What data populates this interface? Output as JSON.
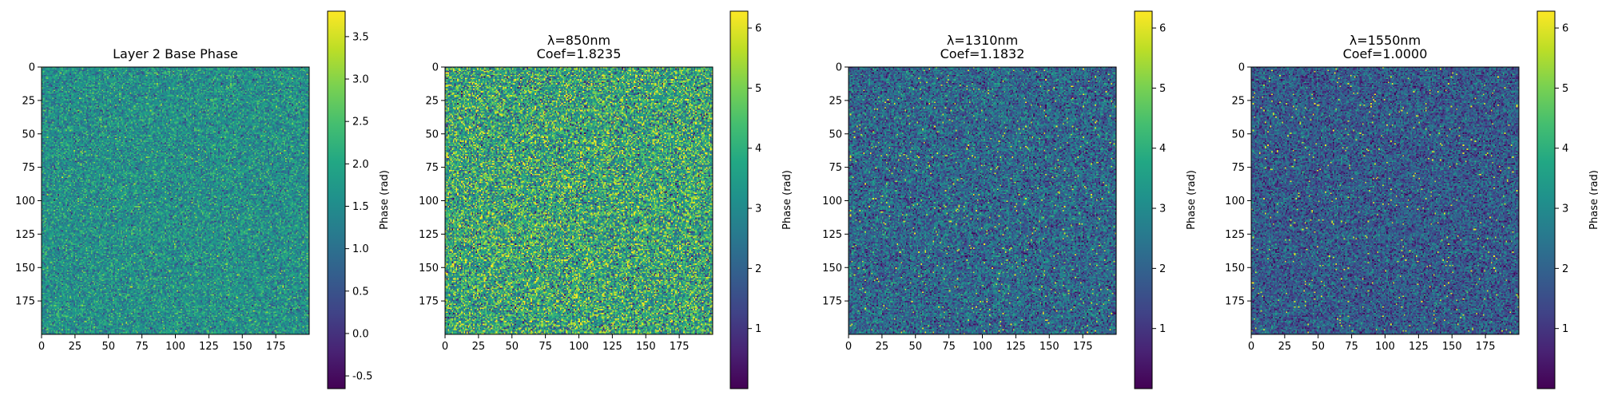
{
  "chart_data": [
    {
      "type": "heatmap",
      "title": "Layer 2 Base Phase",
      "title_line2": "",
      "x_ticks": [
        0,
        25,
        50,
        75,
        100,
        125,
        150,
        175
      ],
      "y_ticks": [
        0,
        25,
        50,
        75,
        100,
        125,
        150,
        175
      ],
      "xlim": [
        0,
        200
      ],
      "ylim": [
        0,
        200
      ],
      "grid_size": 200,
      "colormap": "viridis",
      "value_range": [
        -0.65,
        3.8
      ],
      "colorbar_label": "Phase (rad)",
      "colorbar_ticks": [
        "-0.5",
        "0.0",
        "0.5",
        "1.0",
        "1.5",
        "2.0",
        "2.5",
        "3.0",
        "3.5"
      ],
      "colorbar_tick_values": [
        -0.5,
        0.0,
        0.5,
        1.0,
        1.5,
        2.0,
        2.5,
        3.0,
        3.5
      ],
      "value_distribution": {
        "mean": 1.6,
        "std": 0.55
      }
    },
    {
      "type": "heatmap",
      "title": "λ=850nm",
      "title_line2": "Coef=1.8235",
      "x_ticks": [
        0,
        25,
        50,
        75,
        100,
        125,
        150,
        175
      ],
      "y_ticks": [
        0,
        25,
        50,
        75,
        100,
        125,
        150,
        175
      ],
      "xlim": [
        0,
        200
      ],
      "ylim": [
        0,
        200
      ],
      "grid_size": 200,
      "colormap": "viridis",
      "value_range": [
        0,
        6.28
      ],
      "colorbar_label": "Phase (rad)",
      "colorbar_ticks": [
        "1",
        "2",
        "3",
        "4",
        "5",
        "6"
      ],
      "colorbar_tick_values": [
        1,
        2,
        3,
        4,
        5,
        6
      ],
      "value_distribution": {
        "mean": 3.7,
        "std": 1.4
      }
    },
    {
      "type": "heatmap",
      "title": "λ=1310nm",
      "title_line2": "Coef=1.1832",
      "x_ticks": [
        0,
        25,
        50,
        75,
        100,
        125,
        150,
        175
      ],
      "y_ticks": [
        0,
        25,
        50,
        75,
        100,
        125,
        150,
        175
      ],
      "xlim": [
        0,
        200
      ],
      "ylim": [
        0,
        200
      ],
      "grid_size": 200,
      "colormap": "viridis",
      "value_range": [
        0,
        6.28
      ],
      "colorbar_label": "Phase (rad)",
      "colorbar_ticks": [
        "1",
        "2",
        "3",
        "4",
        "5",
        "6"
      ],
      "colorbar_tick_values": [
        1,
        2,
        3,
        4,
        5,
        6
      ],
      "value_distribution": {
        "mean": 2.1,
        "std": 0.9
      }
    },
    {
      "type": "heatmap",
      "title": "λ=1550nm",
      "title_line2": "Coef=1.0000",
      "x_ticks": [
        0,
        25,
        50,
        75,
        100,
        125,
        150,
        175
      ],
      "y_ticks": [
        0,
        25,
        50,
        75,
        100,
        125,
        150,
        175
      ],
      "xlim": [
        0,
        200
      ],
      "ylim": [
        0,
        200
      ],
      "grid_size": 200,
      "colormap": "viridis",
      "value_range": [
        0,
        6.28
      ],
      "colorbar_label": "Phase (rad)",
      "colorbar_ticks": [
        "1",
        "2",
        "3",
        "4",
        "5",
        "6"
      ],
      "colorbar_tick_values": [
        1,
        2,
        3,
        4,
        5,
        6
      ],
      "value_distribution": {
        "mean": 1.8,
        "std": 0.8
      }
    }
  ]
}
